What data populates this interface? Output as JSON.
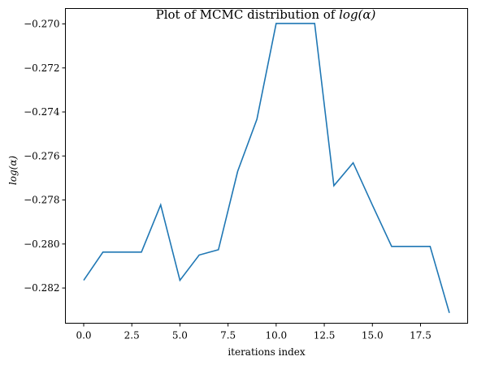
{
  "chart_data": {
    "type": "line",
    "title_prefix": "Plot of MCMC distribution of ",
    "title_math": "log(α)",
    "xlabel": "iterations index",
    "ylabel": "log(α)",
    "xlim": [
      -0.95,
      19.95
    ],
    "ylim": [
      -0.2836,
      -0.2693
    ],
    "xticks": [
      0.0,
      2.5,
      5.0,
      7.5,
      10.0,
      12.5,
      15.0,
      17.5
    ],
    "xtick_labels": [
      "0.0",
      "2.5",
      "5.0",
      "7.5",
      "10.0",
      "12.5",
      "15.0",
      "17.5"
    ],
    "yticks": [
      -0.282,
      -0.28,
      -0.278,
      -0.276,
      -0.274,
      -0.272,
      -0.27
    ],
    "ytick_labels": [
      "−0.282",
      "−0.280",
      "−0.278",
      "−0.276",
      "−0.274",
      "−0.272",
      "−0.270"
    ],
    "grid": false,
    "series": [
      {
        "color": "#1f77b4",
        "x": [
          0,
          1,
          2,
          3,
          4,
          5,
          6,
          7,
          8,
          9,
          10,
          11,
          12,
          13,
          14,
          15,
          16,
          17,
          18,
          19
        ],
        "values": [
          -0.28165,
          -0.28037,
          -0.28037,
          -0.28037,
          -0.27822,
          -0.28165,
          -0.2805,
          -0.28026,
          -0.2767,
          -0.27433,
          -0.26998,
          -0.26998,
          -0.26998,
          -0.27735,
          -0.27631,
          -0.27823,
          -0.28011,
          -0.28011,
          -0.28011,
          -0.28313
        ]
      }
    ]
  }
}
